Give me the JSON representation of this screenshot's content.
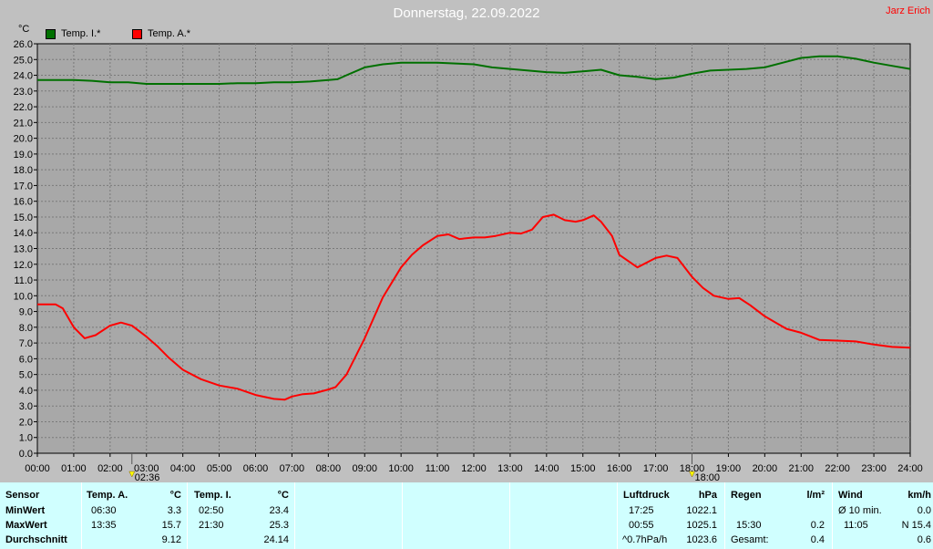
{
  "header": {
    "title": "Donnerstag, 22.09.2022",
    "author": "Jarz Erich",
    "y_unit": "°C"
  },
  "legend": [
    {
      "label": "Temp. I.*",
      "color": "#007000"
    },
    {
      "label": "Temp. A.*",
      "color": "#ff0000"
    }
  ],
  "markers": {
    "sunrise": "02:36",
    "sunset": "18:00"
  },
  "chart_data": {
    "type": "line",
    "ylim": [
      0,
      26
    ],
    "xlim": [
      0,
      24
    ],
    "grid": true,
    "legend_position": "top-left",
    "y_ticks": [
      "0.0",
      "1.0",
      "2.0",
      "3.0",
      "4.0",
      "5.0",
      "6.0",
      "7.0",
      "8.0",
      "9.0",
      "10.0",
      "11.0",
      "12.0",
      "13.0",
      "14.0",
      "15.0",
      "16.0",
      "17.0",
      "18.0",
      "19.0",
      "20.0",
      "21.0",
      "22.0",
      "23.0",
      "24.0",
      "25.0",
      "26.0"
    ],
    "x_ticks": [
      "00:00",
      "01:00",
      "02:00",
      "03:00",
      "04:00",
      "05:00",
      "06:00",
      "07:00",
      "08:00",
      "09:00",
      "10:00",
      "11:00",
      "12:00",
      "13:00",
      "14:00",
      "15:00",
      "16:00",
      "17:00",
      "18:00",
      "19:00",
      "20:00",
      "21:00",
      "22:00",
      "23:00",
      "24:00"
    ],
    "series": [
      {
        "name": "Temp. I.*",
        "color": "#007000",
        "x": [
          0,
          0.5,
          1,
          1.5,
          2,
          2.5,
          3,
          3.5,
          4,
          4.5,
          5,
          5.5,
          6,
          6.5,
          7,
          7.5,
          8,
          8.25,
          8.5,
          9,
          9.5,
          10,
          10.5,
          11,
          11.5,
          12,
          12.5,
          13,
          13.5,
          14,
          14.5,
          15,
          15.5,
          16,
          16.5,
          17,
          17.5,
          18,
          18.5,
          19,
          19.5,
          20,
          20.5,
          21,
          21.5,
          22,
          22.5,
          23,
          23.5,
          24
        ],
        "y": [
          23.7,
          23.7,
          23.7,
          23.65,
          23.55,
          23.55,
          23.45,
          23.45,
          23.45,
          23.45,
          23.45,
          23.5,
          23.5,
          23.55,
          23.55,
          23.6,
          23.7,
          23.75,
          24.0,
          24.5,
          24.7,
          24.8,
          24.8,
          24.8,
          24.75,
          24.7,
          24.5,
          24.4,
          24.3,
          24.2,
          24.15,
          24.25,
          24.35,
          24.0,
          23.9,
          23.75,
          23.85,
          24.1,
          24.3,
          24.35,
          24.4,
          24.5,
          24.8,
          25.1,
          25.2,
          25.2,
          25.05,
          24.8,
          24.6,
          24.4
        ]
      },
      {
        "name": "Temp. A.*",
        "color": "#ff0000",
        "x": [
          0,
          0.5,
          0.7,
          1,
          1.3,
          1.6,
          2,
          2.3,
          2.6,
          3,
          3.3,
          3.6,
          4,
          4.5,
          5,
          5.5,
          6,
          6.5,
          6.8,
          7,
          7.3,
          7.6,
          8,
          8.2,
          8.5,
          9,
          9.5,
          10,
          10.3,
          10.6,
          11,
          11.3,
          11.6,
          12,
          12.3,
          12.6,
          13,
          13.3,
          13.6,
          13.9,
          14.2,
          14.5,
          14.8,
          15,
          15.3,
          15.5,
          15.8,
          16,
          16.5,
          17,
          17.3,
          17.6,
          18,
          18.3,
          18.6,
          19,
          19.3,
          19.6,
          20,
          20.3,
          20.6,
          21,
          21.5,
          22,
          22.5,
          23,
          23.5,
          24
        ],
        "y": [
          9.45,
          9.45,
          9.2,
          8.0,
          7.3,
          7.5,
          8.1,
          8.3,
          8.1,
          7.4,
          6.8,
          6.1,
          5.3,
          4.7,
          4.3,
          4.1,
          3.7,
          3.45,
          3.4,
          3.6,
          3.75,
          3.8,
          4.05,
          4.2,
          5.0,
          7.3,
          9.9,
          11.8,
          12.6,
          13.2,
          13.8,
          13.9,
          13.6,
          13.7,
          13.7,
          13.8,
          14.0,
          13.95,
          14.2,
          15.0,
          15.15,
          14.8,
          14.7,
          14.8,
          15.1,
          14.7,
          13.8,
          12.6,
          11.8,
          12.4,
          12.55,
          12.4,
          11.2,
          10.5,
          10.0,
          9.8,
          9.85,
          9.4,
          8.7,
          8.3,
          7.9,
          7.65,
          7.2,
          7.15,
          7.1,
          6.9,
          6.75,
          6.7
        ]
      }
    ]
  },
  "stats": {
    "sensor": {
      "h": "Sensor",
      "r1": "MinWert",
      "r2": "MaxWert",
      "r3": "Durchschnitt"
    },
    "temp_a": {
      "h": "Temp. A.",
      "u": "°C",
      "min_t": "06:30",
      "min_v": "3.3",
      "max_t": "13:35",
      "max_v": "15.7",
      "avg": "9.12"
    },
    "temp_i": {
      "h": "Temp. I.",
      "u": "°C",
      "min_t": "02:50",
      "min_v": "23.4",
      "max_t": "21:30",
      "max_v": "25.3",
      "avg": "24.14"
    },
    "luftdruck": {
      "h": "Luftdruck",
      "u": "hPa",
      "min_t": "17:25",
      "min_v": "1022.1",
      "max_t": "00:55",
      "max_v": "1025.1",
      "trend": "^0.7hPa/h",
      "avg": "1023.6"
    },
    "regen": {
      "h": "Regen",
      "u": "l/m²",
      "max_t": "15:30",
      "max_v": "0.2",
      "total_label": "Gesamt:",
      "total": "0.4"
    },
    "wind": {
      "h": "Wind",
      "u": "km/h",
      "min_label": "Ø 10 min.",
      "min_v": "0.0",
      "max_t": "11:05",
      "max_v": "N 15.4",
      "avg": "0.6"
    }
  }
}
